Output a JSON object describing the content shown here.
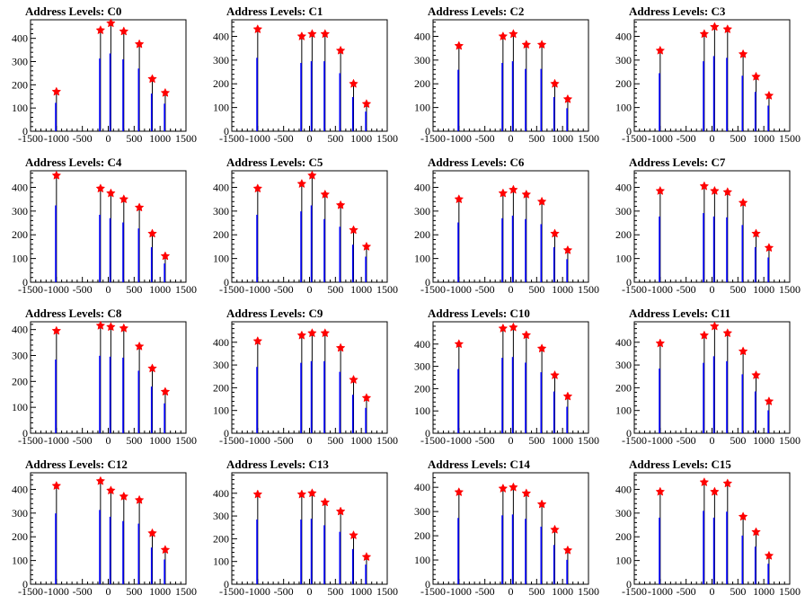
{
  "chart_data": [
    {
      "type": "bar",
      "title": "Address Levels: C0",
      "xlim": [
        -1500,
        1500
      ],
      "ylim": [
        0,
        480
      ],
      "x": [
        -1000,
        -150,
        50,
        300,
        600,
        850,
        1100
      ],
      "values": [
        170,
        435,
        465,
        430,
        375,
        225,
        165
      ],
      "xticks": [
        "-1500",
        "-1000",
        "-500",
        "0",
        "500",
        "1000",
        "1500"
      ],
      "yticks": [
        "0",
        "100",
        "200",
        "300",
        "400"
      ]
    },
    {
      "type": "bar",
      "title": "Address Levels: C1",
      "xlim": [
        -1500,
        1500
      ],
      "ylim": [
        0,
        470
      ],
      "x": [
        -1000,
        -150,
        50,
        300,
        600,
        850,
        1100
      ],
      "values": [
        430,
        400,
        410,
        410,
        340,
        200,
        115
      ],
      "xticks": [
        "-1500",
        "-1000",
        "-500",
        "0",
        "500",
        "1000",
        "1500"
      ],
      "yticks": [
        "0",
        "100",
        "200",
        "300",
        "400"
      ]
    },
    {
      "type": "bar",
      "title": "Address Levels: C2",
      "xlim": [
        -1500,
        1500
      ],
      "ylim": [
        0,
        470
      ],
      "x": [
        -1000,
        -150,
        50,
        300,
        600,
        850,
        1100
      ],
      "values": [
        360,
        400,
        410,
        365,
        365,
        200,
        135
      ],
      "xticks": [
        "-1500",
        "-1000",
        "-500",
        "0",
        "500",
        "1000",
        "1500"
      ],
      "yticks": [
        "0",
        "100",
        "200",
        "300",
        "400"
      ]
    },
    {
      "type": "bar",
      "title": "Address Levels: C3",
      "xlim": [
        -1500,
        1500
      ],
      "ylim": [
        0,
        470
      ],
      "x": [
        -1000,
        -150,
        50,
        300,
        600,
        850,
        1100
      ],
      "values": [
        340,
        410,
        440,
        430,
        325,
        230,
        150
      ],
      "xticks": [
        "-1500",
        "-1000",
        "-500",
        "0",
        "500",
        "1000",
        "1500"
      ],
      "yticks": [
        "0",
        "100",
        "200",
        "300",
        "400"
      ]
    },
    {
      "type": "bar",
      "title": "Address Levels: C4",
      "xlim": [
        -1500,
        1500
      ],
      "ylim": [
        0,
        470
      ],
      "x": [
        -1000,
        -150,
        50,
        300,
        600,
        850,
        1100
      ],
      "values": [
        450,
        395,
        375,
        350,
        315,
        205,
        110
      ],
      "xticks": [
        "-1500",
        "-1000",
        "-500",
        "0",
        "500",
        "1000",
        "1500"
      ],
      "yticks": [
        "0",
        "100",
        "200",
        "300",
        "400"
      ]
    },
    {
      "type": "bar",
      "title": "Address Levels: C5",
      "xlim": [
        -1500,
        1500
      ],
      "ylim": [
        0,
        470
      ],
      "x": [
        -1000,
        -150,
        50,
        300,
        600,
        850,
        1100
      ],
      "values": [
        395,
        415,
        450,
        370,
        325,
        220,
        150
      ],
      "xticks": [
        "-1500",
        "-1000",
        "-500",
        "0",
        "500",
        "1000",
        "1500"
      ],
      "yticks": [
        "0",
        "100",
        "200",
        "300",
        "400"
      ]
    },
    {
      "type": "bar",
      "title": "Address Levels: C6",
      "xlim": [
        -1500,
        1500
      ],
      "ylim": [
        0,
        470
      ],
      "x": [
        -1000,
        -150,
        50,
        300,
        600,
        850,
        1100
      ],
      "values": [
        350,
        375,
        390,
        370,
        340,
        205,
        135
      ],
      "xticks": [
        "-1500",
        "-1000",
        "-500",
        "0",
        "500",
        "1000",
        "1500"
      ],
      "yticks": [
        "0",
        "100",
        "200",
        "300",
        "400"
      ]
    },
    {
      "type": "bar",
      "title": "Address Levels: C7",
      "xlim": [
        -1500,
        1500
      ],
      "ylim": [
        0,
        470
      ],
      "x": [
        -1000,
        -150,
        50,
        300,
        600,
        850,
        1100
      ],
      "values": [
        385,
        405,
        385,
        380,
        335,
        205,
        145
      ],
      "xticks": [
        "-1500",
        "-1000",
        "-500",
        "0",
        "500",
        "1000",
        "1500"
      ],
      "yticks": [
        "0",
        "100",
        "200",
        "300",
        "400"
      ]
    },
    {
      "type": "bar",
      "title": "Address Levels: C8",
      "xlim": [
        -1500,
        1500
      ],
      "ylim": [
        0,
        430
      ],
      "x": [
        -1000,
        -150,
        50,
        300,
        600,
        850,
        1100
      ],
      "values": [
        395,
        415,
        410,
        405,
        335,
        250,
        160
      ],
      "xticks": [
        "-1500",
        "-1000",
        "-500",
        "0",
        "500",
        "1000",
        "1500"
      ],
      "yticks": [
        "0",
        "100",
        "200",
        "300",
        "400"
      ]
    },
    {
      "type": "bar",
      "title": "Address Levels: C9",
      "xlim": [
        -1500,
        1500
      ],
      "ylim": [
        0,
        490
      ],
      "x": [
        -1000,
        -150,
        50,
        300,
        600,
        850,
        1100
      ],
      "values": [
        405,
        430,
        440,
        440,
        375,
        235,
        155
      ],
      "xticks": [
        "-1500",
        "-1000",
        "-500",
        "0",
        "500",
        "1000",
        "1500"
      ],
      "yticks": [
        "0",
        "100",
        "200",
        "300",
        "400"
      ]
    },
    {
      "type": "bar",
      "title": "Address Levels: C10",
      "xlim": [
        -1500,
        1500
      ],
      "ylim": [
        0,
        500
      ],
      "x": [
        -1000,
        -150,
        50,
        300,
        600,
        850,
        1100
      ],
      "values": [
        400,
        470,
        475,
        440,
        380,
        260,
        165
      ],
      "xticks": [
        "-1500",
        "-1000",
        "-500",
        "0",
        "500",
        "1000",
        "1500"
      ],
      "yticks": [
        "0",
        "100",
        "200",
        "300",
        "400"
      ]
    },
    {
      "type": "bar",
      "title": "Address Levels: C11",
      "xlim": [
        -1500,
        1500
      ],
      "ylim": [
        0,
        490
      ],
      "x": [
        -1000,
        -150,
        50,
        300,
        600,
        850,
        1100
      ],
      "values": [
        395,
        430,
        470,
        440,
        360,
        255,
        140
      ],
      "xticks": [
        "-1500",
        "-1000",
        "-500",
        "0",
        "500",
        "1000",
        "1500"
      ],
      "yticks": [
        "0",
        "100",
        "200",
        "300",
        "400"
      ]
    },
    {
      "type": "bar",
      "title": "Address Levels: C12",
      "xlim": [
        -1500,
        1500
      ],
      "ylim": [
        0,
        470
      ],
      "x": [
        -1000,
        -150,
        50,
        300,
        600,
        850,
        1100
      ],
      "values": [
        415,
        435,
        395,
        370,
        355,
        215,
        145
      ],
      "xticks": [
        "-1500",
        "-1000",
        "-500",
        "0",
        "500",
        "1000",
        "1500"
      ],
      "yticks": [
        "0",
        "100",
        "200",
        "300",
        "400"
      ]
    },
    {
      "type": "bar",
      "title": "Address Levels: C13",
      "xlim": [
        -1500,
        1500
      ],
      "ylim": [
        0,
        490
      ],
      "x": [
        -1000,
        -150,
        50,
        300,
        600,
        850,
        1100
      ],
      "values": [
        395,
        395,
        400,
        360,
        320,
        215,
        120
      ],
      "xticks": [
        "-1500",
        "-1000",
        "-500",
        "0",
        "500",
        "1000",
        "1500"
      ],
      "yticks": [
        "0",
        "100",
        "200",
        "300",
        "400"
      ]
    },
    {
      "type": "bar",
      "title": "Address Levels: C14",
      "xlim": [
        -1500,
        1500
      ],
      "ylim": [
        0,
        460
      ],
      "x": [
        -1000,
        -150,
        50,
        300,
        600,
        850,
        1100
      ],
      "values": [
        380,
        395,
        400,
        375,
        330,
        225,
        140
      ],
      "xticks": [
        "-1500",
        "-1000",
        "-500",
        "0",
        "500",
        "1000",
        "1500"
      ],
      "yticks": [
        "0",
        "100",
        "200",
        "300",
        "400"
      ]
    },
    {
      "type": "bar",
      "title": "Address Levels: C15",
      "xlim": [
        -1500,
        1500
      ],
      "ylim": [
        0,
        470
      ],
      "x": [
        -1000,
        -150,
        50,
        300,
        600,
        850,
        1100
      ],
      "values": [
        390,
        430,
        390,
        425,
        285,
        220,
        120
      ],
      "xticks": [
        "-1500",
        "-1000",
        "-500",
        "0",
        "500",
        "1000",
        "1500"
      ],
      "yticks": [
        "0",
        "100",
        "200",
        "300",
        "400"
      ]
    }
  ],
  "colors": {
    "bar": "#0000ff",
    "spike": "#000000",
    "marker": "#ff0000"
  }
}
